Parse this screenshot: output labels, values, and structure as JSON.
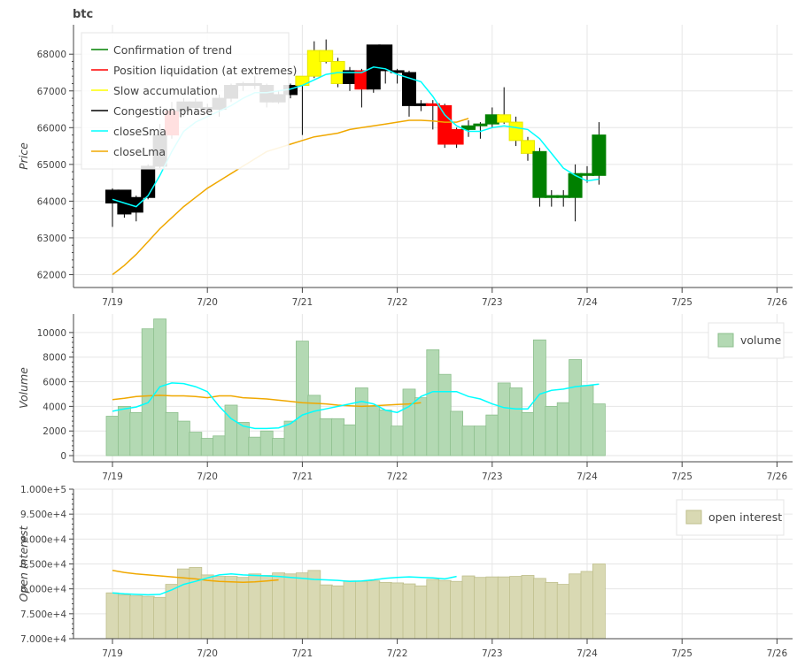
{
  "chart_data": {
    "title": "btc",
    "x_ticks": [
      "7/19",
      "7/20",
      "7/21",
      "7/22",
      "7/23",
      "7/24",
      "7/25",
      "7/26"
    ],
    "price_panel": {
      "type": "candlestick",
      "ylabel": "Price",
      "y_ticks": [
        62000,
        63000,
        64000,
        65000,
        66000,
        67000,
        68000
      ],
      "ylim": [
        61650,
        68800
      ],
      "legend": {
        "placement": "top-left",
        "entries": [
          {
            "label": "Confirmation of trend",
            "color": "#008000"
          },
          {
            "label": "Position liquidation (at extremes)",
            "color": "#ff0000"
          },
          {
            "label": "Slow accumulation",
            "color": "#ffff00"
          },
          {
            "label": "Congestion phase",
            "color": "#000000"
          },
          {
            "label": "closeSma",
            "color": "#00ffff"
          },
          {
            "label": "closeLma",
            "color": "#f0a800"
          }
        ]
      },
      "phase_colors": {
        "trend": "#008000",
        "liquidation": "#ff0000",
        "accumulation": "#ffff00",
        "congestion": "#000000"
      },
      "candles": [
        {
          "o": 63950,
          "c": 64300,
          "h": 64350,
          "l": 63300,
          "phase": "congestion"
        },
        {
          "o": 64300,
          "c": 63650,
          "h": 64300,
          "l": 63550,
          "phase": "congestion"
        },
        {
          "o": 63700,
          "c": 64100,
          "h": 64150,
          "l": 63450,
          "phase": "congestion"
        },
        {
          "o": 64100,
          "c": 64950,
          "h": 65000,
          "l": 64050,
          "phase": "congestion"
        },
        {
          "o": 64950,
          "c": 65800,
          "h": 66100,
          "l": 64900,
          "phase": "congestion"
        },
        {
          "o": 65800,
          "c": 66450,
          "h": 66700,
          "l": 65700,
          "phase": "liquidation"
        },
        {
          "o": 66450,
          "c": 66700,
          "h": 66800,
          "l": 66300,
          "phase": "congestion"
        },
        {
          "o": 66700,
          "c": 66550,
          "h": 66800,
          "l": 66400,
          "phase": "congestion"
        },
        {
          "o": 66550,
          "c": 66500,
          "h": 66650,
          "l": 66400,
          "phase": "congestion"
        },
        {
          "o": 66500,
          "c": 66800,
          "h": 66900,
          "l": 66300,
          "phase": "congestion"
        },
        {
          "o": 66800,
          "c": 67150,
          "h": 67200,
          "l": 66700,
          "phase": "congestion"
        },
        {
          "o": 67150,
          "c": 67200,
          "h": 67250,
          "l": 67000,
          "phase": "congestion"
        },
        {
          "o": 67200,
          "c": 67150,
          "h": 67400,
          "l": 67050,
          "phase": "congestion"
        },
        {
          "o": 67150,
          "c": 66700,
          "h": 67200,
          "l": 66550,
          "phase": "congestion"
        },
        {
          "o": 66700,
          "c": 66900,
          "h": 67000,
          "l": 66650,
          "phase": "congestion"
        },
        {
          "o": 66900,
          "c": 67150,
          "h": 67200,
          "l": 66800,
          "phase": "congestion"
        },
        {
          "o": 67150,
          "c": 67400,
          "h": 67400,
          "l": 65800,
          "phase": "accumulation"
        },
        {
          "o": 67400,
          "c": 68100,
          "h": 68350,
          "l": 67350,
          "phase": "accumulation"
        },
        {
          "o": 68100,
          "c": 67800,
          "h": 68400,
          "l": 67750,
          "phase": "accumulation"
        },
        {
          "o": 67800,
          "c": 67200,
          "h": 67900,
          "l": 67100,
          "phase": "accumulation"
        },
        {
          "o": 67200,
          "c": 67550,
          "h": 67650,
          "l": 67000,
          "phase": "congestion"
        },
        {
          "o": 67550,
          "c": 67050,
          "h": 67600,
          "l": 66550,
          "phase": "liquidation"
        },
        {
          "o": 67050,
          "c": 68250,
          "h": 68250,
          "l": 66950,
          "phase": "congestion"
        },
        {
          "o": 68250,
          "c": 67550,
          "h": 68250,
          "l": 67200,
          "phase": "congestion"
        },
        {
          "o": 67550,
          "c": 67500,
          "h": 67600,
          "l": 67200,
          "phase": "congestion"
        },
        {
          "o": 67500,
          "c": 66600,
          "h": 67550,
          "l": 66300,
          "phase": "congestion"
        },
        {
          "o": 66600,
          "c": 66650,
          "h": 66750,
          "l": 66450,
          "phase": "congestion"
        },
        {
          "o": 66650,
          "c": 66600,
          "h": 66750,
          "l": 65950,
          "phase": "liquidation"
        },
        {
          "o": 66600,
          "c": 65550,
          "h": 66650,
          "l": 65450,
          "phase": "liquidation"
        },
        {
          "o": 65550,
          "c": 65950,
          "h": 66000,
          "l": 65450,
          "phase": "liquidation"
        },
        {
          "o": 65950,
          "c": 66050,
          "h": 66200,
          "l": 65750,
          "phase": "trend"
        },
        {
          "o": 66050,
          "c": 66100,
          "h": 66150,
          "l": 65700,
          "phase": "trend"
        },
        {
          "o": 66100,
          "c": 66350,
          "h": 66550,
          "l": 66000,
          "phase": "trend"
        },
        {
          "o": 66350,
          "c": 66150,
          "h": 67100,
          "l": 66100,
          "phase": "accumulation"
        },
        {
          "o": 66150,
          "c": 65650,
          "h": 66300,
          "l": 65500,
          "phase": "accumulation"
        },
        {
          "o": 65650,
          "c": 65300,
          "h": 65750,
          "l": 65100,
          "phase": "accumulation"
        },
        {
          "o": 65350,
          "c": 64100,
          "h": 65450,
          "l": 63850,
          "phase": "trend"
        },
        {
          "o": 64100,
          "c": 64150,
          "h": 64300,
          "l": 63850,
          "phase": "trend"
        },
        {
          "o": 64150,
          "c": 64100,
          "h": 64300,
          "l": 63850,
          "phase": "trend"
        },
        {
          "o": 64100,
          "c": 64750,
          "h": 65000,
          "l": 63450,
          "phase": "trend"
        },
        {
          "o": 64750,
          "c": 64700,
          "h": 64950,
          "l": 64500,
          "phase": "trend"
        },
        {
          "o": 64700,
          "c": 65800,
          "h": 66150,
          "l": 64450,
          "phase": "trend"
        }
      ],
      "closeSma": [
        64050,
        63950,
        63850,
        64150,
        64700,
        65350,
        65900,
        66150,
        66300,
        66450,
        66600,
        66800,
        66950,
        66950,
        67000,
        67050,
        67150,
        67300,
        67450,
        67500,
        67500,
        67500,
        67650,
        67600,
        67450,
        67350,
        67250,
        66850,
        66350,
        66050,
        65900,
        65900,
        66000,
        66050,
        66000,
        65950,
        65700,
        65300,
        64900,
        64700,
        64550,
        64600
      ],
      "closeLma": [
        62000,
        62250,
        62550,
        62900,
        63250,
        63550,
        63850,
        64100,
        64350,
        64550,
        64750,
        64950,
        65150,
        65350,
        65450,
        65550,
        65650,
        65750,
        65800,
        65850,
        65950,
        66000,
        66050,
        66100,
        66150,
        66200,
        66200,
        66180,
        66150,
        66150,
        66250
      ]
    },
    "volume_panel": {
      "type": "bar",
      "ylabel": "Volume",
      "y_ticks": [
        0,
        2000,
        4000,
        6000,
        8000,
        10000
      ],
      "ylim": [
        -500,
        11500
      ],
      "legend": {
        "placement": "top-right",
        "entries": [
          {
            "label": "volume",
            "color": "#b3d9b3"
          }
        ]
      },
      "values": [
        3200,
        4000,
        3500,
        10300,
        11100,
        3500,
        2800,
        1900,
        1400,
        1600,
        4100,
        2700,
        1500,
        2000,
        1400,
        2800,
        9300,
        4900,
        3000,
        3000,
        2500,
        5500,
        4000,
        3700,
        2400,
        5400,
        4700,
        8600,
        6600,
        3600,
        2400,
        2400,
        3300,
        5900,
        5500,
        3500,
        9400,
        4000,
        4300,
        7800,
        5700,
        4200
      ],
      "closeSma": [
        3600,
        3800,
        3950,
        4300,
        5600,
        5900,
        5850,
        5600,
        5200,
        4000,
        3000,
        2400,
        2200,
        2200,
        2250,
        2600,
        3300,
        3600,
        3800,
        4000,
        4200,
        4400,
        4200,
        3700,
        3500,
        4000,
        4800,
        5200,
        5200,
        5200,
        4800,
        4600,
        4200,
        3900,
        3800,
        3800,
        5000,
        5300,
        5400,
        5600,
        5700,
        5800
      ],
      "closeLma": [
        4550,
        4650,
        4800,
        4850,
        4900,
        4850,
        4850,
        4800,
        4700,
        4850,
        4850,
        4700,
        4650,
        4600,
        4500,
        4400,
        4300,
        4250,
        4200,
        4100,
        4050,
        4000,
        4050,
        4100,
        4150,
        4200,
        4300
      ]
    },
    "oi_panel": {
      "type": "bar",
      "ylabel": "Open Interest",
      "y_ticks": [
        "7.000e+4",
        "7.500e+4",
        "8.000e+4",
        "8.500e+4",
        "9.000e+4",
        "9.500e+4",
        "1.000e+5"
      ],
      "ylim": [
        70000,
        100000
      ],
      "legend": {
        "placement": "top-right",
        "entries": [
          {
            "label": "open interest",
            "color": "#d9d9b3"
          }
        ]
      },
      "values": [
        79200,
        78800,
        78600,
        78500,
        78300,
        80900,
        84000,
        84300,
        82800,
        82500,
        82500,
        82300,
        83000,
        82700,
        83200,
        83000,
        83200,
        83700,
        80800,
        80600,
        81600,
        81500,
        81600,
        81300,
        81200,
        81000,
        80600,
        81900,
        81700,
        81500,
        82600,
        82300,
        82400,
        82400,
        82500,
        82700,
        82100,
        81300,
        80900,
        83000,
        83500,
        85000
      ],
      "closeSma": [
        79200,
        79000,
        78900,
        78800,
        78900,
        79800,
        80900,
        81500,
        82200,
        82800,
        83000,
        82800,
        82700,
        82600,
        82500,
        82300,
        82100,
        81900,
        81800,
        81700,
        81500,
        81600,
        81800,
        82100,
        82300,
        82400,
        82300,
        82200,
        82000,
        82500
      ],
      "closeLma": [
        83700,
        83300,
        83000,
        82800,
        82600,
        82400,
        82200,
        82000,
        81700,
        81500,
        81400,
        81300,
        81400,
        81600,
        81800
      ]
    }
  }
}
